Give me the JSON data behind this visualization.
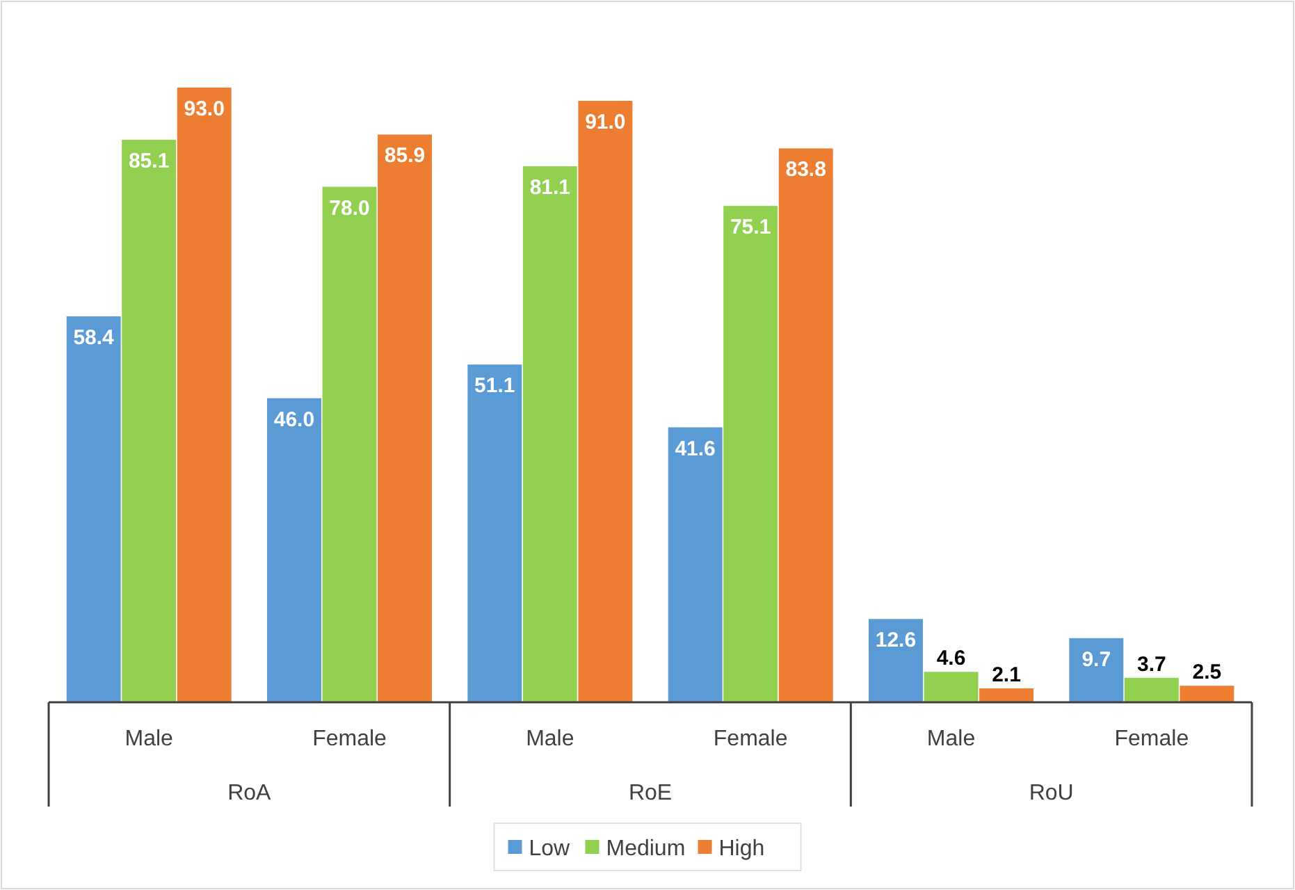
{
  "chart_data": {
    "type": "bar",
    "categories": [
      "Male",
      "Female",
      "Male",
      "Female",
      "Male",
      "Female"
    ],
    "annotations": [
      "RoA",
      "RoE",
      "RoU"
    ],
    "series": [
      {
        "name": "Low",
        "color": "#5b9bd5",
        "values": [
          58.4,
          46.0,
          51.1,
          41.6,
          12.6,
          9.7
        ],
        "value_labels": [
          "58.4",
          "46.0",
          "51.1",
          "41.6",
          "12.6",
          "9.7"
        ]
      },
      {
        "name": "Medium",
        "color": "#92d050",
        "values": [
          85.1,
          78.0,
          81.1,
          75.1,
          4.6,
          3.7
        ],
        "value_labels": [
          "85.1",
          "78.0",
          "81.1",
          "75.1",
          "4.6",
          "3.7"
        ]
      },
      {
        "name": "High",
        "color": "#ed7d31",
        "values": [
          93.0,
          85.9,
          91.0,
          83.8,
          2.1,
          2.5
        ],
        "value_labels": [
          "93.0",
          "85.9",
          "91.0",
          "83.8",
          "2.1",
          "2.5"
        ]
      }
    ],
    "legend": "bottom",
    "grid": false
  }
}
